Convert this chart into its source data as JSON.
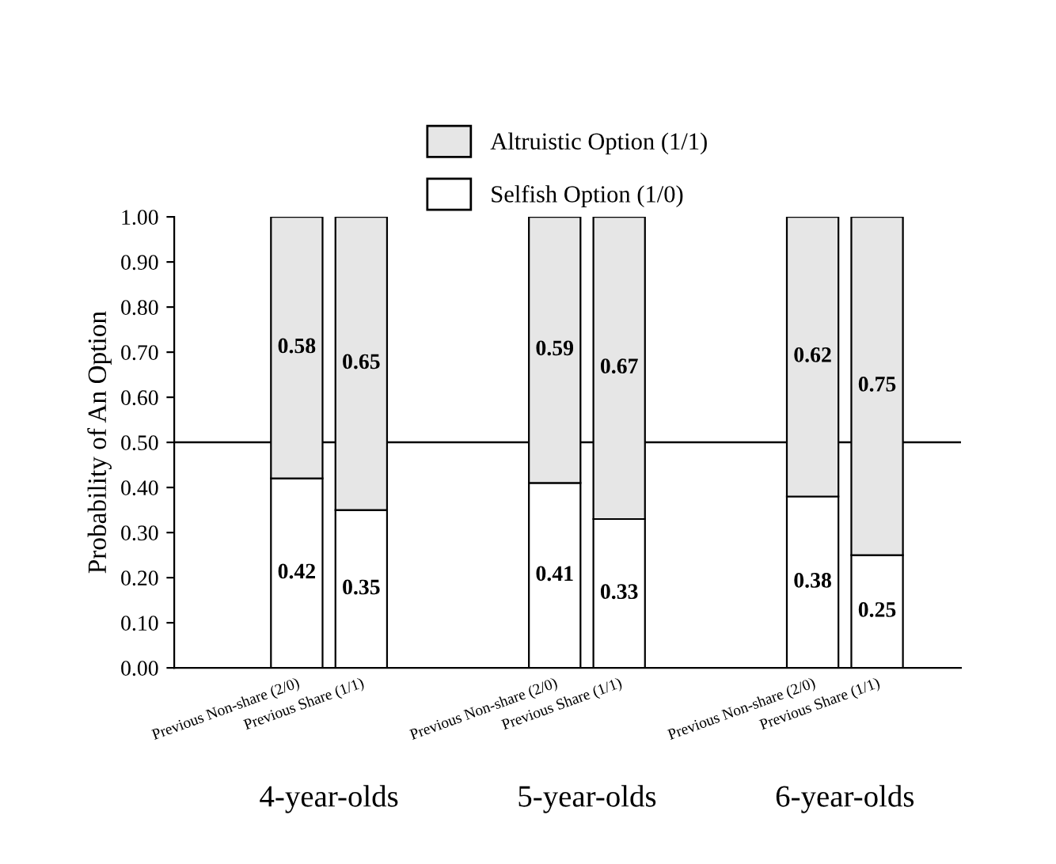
{
  "chart_data": {
    "type": "bar",
    "stacked": true,
    "ylabel": "Probability of An Option",
    "categories": [
      "Previous Non-share (2/0)",
      "Previous Share (1/1)",
      null,
      null,
      "Previous Non-share (2/0)",
      "Previous Share (1/1)",
      null,
      null,
      "Previous Non-share (2/0)",
      "Previous Share (1/1)"
    ],
    "series": [
      {
        "name": "Selfish Option (1/0)",
        "color": "#ffffff",
        "values": [
          0.42,
          0.35,
          null,
          null,
          0.41,
          0.33,
          null,
          null,
          0.38,
          0.25
        ]
      },
      {
        "name": "Altruistic Option (1/1)",
        "color": "#e6e6e6",
        "values": [
          0.58,
          0.65,
          null,
          null,
          0.59,
          0.67,
          null,
          null,
          0.62,
          0.75
        ]
      }
    ],
    "ylim": [
      0,
      1
    ],
    "yticks": [
      {
        "value": 0,
        "label": "0.00"
      },
      {
        "value": 0.1,
        "label": "0.10"
      },
      {
        "value": 0.2,
        "label": "0.20"
      },
      {
        "value": 0.3,
        "label": "0.30"
      },
      {
        "value": 0.4,
        "label": "0.40"
      },
      {
        "value": 0.5,
        "label": "0.50"
      },
      {
        "value": 0.6,
        "label": "0.60"
      },
      {
        "value": 0.7,
        "label": "0.70"
      },
      {
        "value": 0.8,
        "label": "0.80"
      },
      {
        "value": 0.9,
        "label": "0.90"
      },
      {
        "value": 1,
        "label": "1.00"
      }
    ],
    "ref_lines": [
      {
        "axis": "y",
        "value": 0.5,
        "color": "#000000"
      }
    ],
    "data_labels": true,
    "legend": "top",
    "grid": false,
    "annotations": [
      "4-year-olds",
      "5-year-olds",
      "6-year-olds"
    ]
  }
}
